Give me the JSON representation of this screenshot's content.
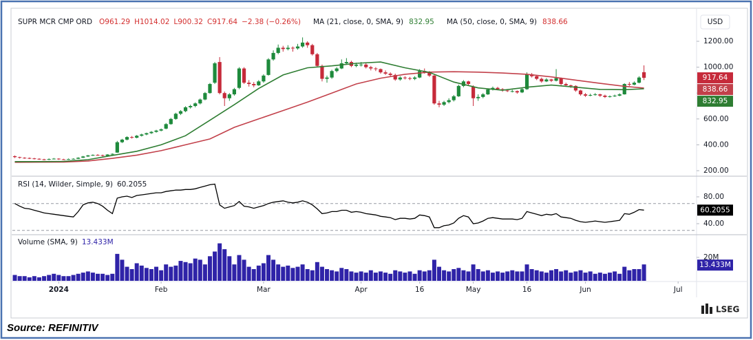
{
  "header": {
    "symbol": "SUPR MCR CMP ORD",
    "ohlc_labels": [
      "O961.29",
      "H1014.02",
      "L900.32",
      "C917.64"
    ],
    "change_label": "−2.38 (−0.26%)"
  },
  "currency": "USD",
  "source": "Source: REFINITIV",
  "logo": "LSEG",
  "chart_data": [
    {
      "type": "candlestick",
      "up_color": "#1e8a3c",
      "down_color": "#c62a3a",
      "xlim": [
        -0.5,
        139.5
      ],
      "xticks": [
        {
          "value": 9,
          "label": "2024"
        },
        {
          "value": 30,
          "label": "Feb"
        },
        {
          "value": 51,
          "label": "Mar"
        },
        {
          "value": 71,
          "label": "Apr"
        },
        {
          "value": 83,
          "label": "16"
        },
        {
          "value": 94,
          "label": "May"
        },
        {
          "value": 105,
          "label": "16"
        },
        {
          "value": 117,
          "label": "Jun"
        },
        {
          "value": 136,
          "label": "Jul"
        }
      ],
      "ylim": [
        162.8,
        1412.8
      ],
      "yticks": [
        {
          "value": 200,
          "label": "200.00"
        },
        {
          "value": 400,
          "label": "400.00"
        },
        {
          "value": 600,
          "label": "600.00"
        },
        {
          "value": 800,
          "label": "800.00"
        },
        {
          "value": 1000,
          "label": "1000.00"
        },
        {
          "value": 1200,
          "label": "1200.00"
        }
      ],
      "close_label": "917.64",
      "candles": [
        [
          312,
          318,
          298,
          305
        ],
        [
          305,
          308,
          294,
          300
        ],
        [
          300,
          304,
          292,
          298
        ],
        [
          298,
          302,
          290,
          295
        ],
        [
          295,
          299,
          287,
          292
        ],
        [
          292,
          296,
          284,
          288
        ],
        [
          288,
          292,
          280,
          285
        ],
        [
          285,
          295,
          282,
          290
        ],
        [
          290,
          298,
          287,
          293
        ],
        [
          293,
          296,
          284,
          288
        ],
        [
          288,
          292,
          282,
          286
        ],
        [
          286,
          294,
          284,
          290
        ],
        [
          290,
          296,
          287,
          292
        ],
        [
          292,
          304,
          290,
          300
        ],
        [
          300,
          314,
          298,
          310
        ],
        [
          310,
          322,
          306,
          318
        ],
        [
          318,
          326,
          314,
          322
        ],
        [
          322,
          328,
          316,
          320
        ],
        [
          320,
          324,
          310,
          315
        ],
        [
          315,
          328,
          312,
          325
        ],
        [
          325,
          334,
          320,
          330
        ],
        [
          340,
          430,
          338,
          420
        ],
        [
          420,
          446,
          414,
          440
        ],
        [
          440,
          466,
          434,
          460
        ],
        [
          460,
          468,
          448,
          455
        ],
        [
          455,
          476,
          450,
          470
        ],
        [
          470,
          486,
          464,
          480
        ],
        [
          480,
          494,
          474,
          490
        ],
        [
          490,
          506,
          484,
          500
        ],
        [
          500,
          516,
          494,
          510
        ],
        [
          510,
          526,
          504,
          520
        ],
        [
          525,
          568,
          520,
          560
        ],
        [
          560,
          608,
          555,
          600
        ],
        [
          600,
          648,
          594,
          640
        ],
        [
          640,
          668,
          630,
          660
        ],
        [
          660,
          698,
          652,
          690
        ],
        [
          690,
          710,
          680,
          700
        ],
        [
          700,
          728,
          690,
          720
        ],
        [
          720,
          758,
          712,
          750
        ],
        [
          750,
          808,
          744,
          800
        ],
        [
          800,
          878,
          795,
          870
        ],
        [
          880,
          1040,
          870,
          1030
        ],
        [
          1040,
          1078,
          790,
          800
        ],
        [
          800,
          812,
          700,
          760
        ],
        [
          760,
          800,
          740,
          790
        ],
        [
          790,
          840,
          780,
          830
        ],
        [
          840,
          1000,
          830,
          990
        ],
        [
          990,
          1000,
          870,
          880
        ],
        [
          880,
          900,
          850,
          870
        ],
        [
          870,
          885,
          845,
          860
        ],
        [
          860,
          900,
          855,
          890
        ],
        [
          890,
          945,
          880,
          935
        ],
        [
          940,
          1070,
          935,
          1060
        ],
        [
          1060,
          1130,
          1050,
          1110
        ],
        [
          1110,
          1175,
          1100,
          1150
        ],
        [
          1150,
          1165,
          1120,
          1140
        ],
        [
          1140,
          1170,
          1130,
          1150
        ],
        [
          1150,
          1160,
          1120,
          1145
        ],
        [
          1145,
          1180,
          1135,
          1160
        ],
        [
          1160,
          1230,
          1150,
          1190
        ],
        [
          1190,
          1200,
          1150,
          1170
        ],
        [
          1170,
          1180,
          1090,
          1100
        ],
        [
          1100,
          1110,
          1000,
          1010
        ],
        [
          1010,
          1020,
          890,
          910
        ],
        [
          910,
          935,
          880,
          920
        ],
        [
          920,
          980,
          910,
          970
        ],
        [
          970,
          1000,
          960,
          990
        ],
        [
          990,
          1060,
          985,
          1030
        ],
        [
          1030,
          1070,
          1020,
          1040
        ],
        [
          1040,
          1050,
          1000,
          1010
        ],
        [
          1010,
          1035,
          1000,
          1020
        ],
        [
          1020,
          1040,
          1005,
          1020
        ],
        [
          1020,
          1030,
          990,
          1000
        ],
        [
          1000,
          1010,
          975,
          990
        ],
        [
          990,
          1000,
          970,
          985
        ],
        [
          985,
          990,
          950,
          960
        ],
        [
          960,
          975,
          940,
          950
        ],
        [
          950,
          960,
          930,
          940
        ],
        [
          940,
          950,
          895,
          905
        ],
        [
          905,
          930,
          895,
          920
        ],
        [
          920,
          930,
          905,
          915
        ],
        [
          915,
          925,
          900,
          910
        ],
        [
          910,
          930,
          900,
          920
        ],
        [
          920,
          985,
          915,
          970
        ],
        [
          970,
          990,
          950,
          960
        ],
        [
          960,
          970,
          925,
          935
        ],
        [
          935,
          940,
          710,
          720
        ],
        [
          720,
          740,
          690,
          710
        ],
        [
          710,
          740,
          700,
          730
        ],
        [
          730,
          760,
          720,
          745
        ],
        [
          745,
          785,
          735,
          775
        ],
        [
          775,
          865,
          770,
          855
        ],
        [
          855,
          900,
          845,
          890
        ],
        [
          890,
          895,
          860,
          870
        ],
        [
          850,
          860,
          700,
          760
        ],
        [
          760,
          790,
          740,
          770
        ],
        [
          770,
          800,
          760,
          790
        ],
        [
          790,
          835,
          785,
          828
        ],
        [
          828,
          850,
          820,
          840
        ],
        [
          840,
          848,
          822,
          830
        ],
        [
          830,
          838,
          810,
          820
        ],
        [
          820,
          830,
          808,
          815
        ],
        [
          815,
          825,
          805,
          815
        ],
        [
          815,
          820,
          795,
          805
        ],
        [
          805,
          840,
          800,
          830
        ],
        [
          830,
          960,
          825,
          945
        ],
        [
          945,
          955,
          920,
          930
        ],
        [
          930,
          940,
          900,
          910
        ],
        [
          910,
          920,
          880,
          890
        ],
        [
          890,
          915,
          885,
          905
        ],
        [
          905,
          910,
          885,
          895
        ],
        [
          895,
          985,
          890,
          915
        ],
        [
          915,
          920,
          860,
          870
        ],
        [
          870,
          880,
          850,
          860
        ],
        [
          860,
          865,
          840,
          855
        ],
        [
          855,
          860,
          810,
          820
        ],
        [
          820,
          825,
          780,
          790
        ],
        [
          790,
          800,
          770,
          780
        ],
        [
          780,
          795,
          775,
          785
        ],
        [
          785,
          800,
          780,
          790
        ],
        [
          790,
          795,
          770,
          780
        ],
        [
          780,
          788,
          762,
          770
        ],
        [
          770,
          782,
          765,
          775
        ],
        [
          775,
          788,
          770,
          780
        ],
        [
          780,
          798,
          775,
          790
        ],
        [
          790,
          875,
          788,
          870
        ],
        [
          870,
          885,
          855,
          865
        ],
        [
          865,
          890,
          860,
          880
        ],
        [
          880,
          930,
          875,
          920.02
        ],
        [
          961.29,
          1014.02,
          900.32,
          917.64
        ]
      ],
      "series": [
        {
          "name": "MA (21, close, 0, SMA, 9)",
          "color": "#2e7d32",
          "value_label": "832.95",
          "x": [
            0,
            5,
            10,
            15,
            20,
            25,
            30,
            35,
            40,
            45,
            50,
            55,
            60,
            65,
            70,
            75,
            80,
            85,
            90,
            95,
            100,
            105,
            110,
            115,
            120,
            125,
            129
          ],
          "values": [
            270,
            270,
            272,
            285,
            318,
            350,
            400,
            470,
            590,
            710,
            835,
            940,
            995,
            1010,
            1030,
            1040,
            995,
            960,
            885,
            840,
            822,
            845,
            862,
            845,
            828,
            826,
            832.95
          ]
        },
        {
          "name": "MA (50, close, 0, SMA, 9)",
          "color": "#c2404a",
          "value_label": "838.66",
          "x": [
            0,
            5,
            10,
            15,
            20,
            25,
            30,
            35,
            40,
            45,
            50,
            55,
            60,
            65,
            70,
            75,
            80,
            85,
            90,
            95,
            100,
            105,
            110,
            115,
            120,
            125,
            129
          ],
          "values": [
            265,
            266,
            267,
            275,
            295,
            320,
            355,
            400,
            445,
            535,
            600,
            665,
            730,
            800,
            870,
            915,
            945,
            962,
            965,
            962,
            955,
            945,
            925,
            900,
            875,
            852,
            838.66
          ]
        }
      ]
    },
    {
      "type": "line",
      "title": "RSI (14, Wilder, Simple, 9)",
      "value_label": "60.2055",
      "color": "#000000",
      "ylim": [
        24.6,
        108.7
      ],
      "yticks": [
        {
          "value": 40,
          "label": "40.00"
        },
        {
          "value": 80,
          "label": "80.00"
        }
      ],
      "bands": [
        30,
        70
      ],
      "values": [
        70,
        66,
        63,
        62,
        60,
        58,
        56,
        55,
        54,
        53,
        52,
        51,
        50,
        58,
        68,
        71,
        72,
        70,
        66,
        60,
        55,
        78,
        80,
        81,
        79,
        82,
        83,
        84,
        85,
        86,
        86,
        88,
        89,
        90,
        90,
        91,
        91,
        92,
        94,
        96,
        98,
        99,
        68,
        63,
        65,
        67,
        73,
        66,
        65,
        63,
        65,
        67,
        70,
        72,
        73,
        74,
        72,
        71,
        72,
        74,
        72,
        68,
        62,
        55,
        56,
        58,
        58,
        60,
        60,
        57,
        58,
        57,
        55,
        54,
        53,
        51,
        50,
        49,
        46,
        48,
        48,
        47,
        48,
        53,
        52,
        50,
        34,
        34,
        37,
        38,
        41,
        48,
        52,
        50,
        40,
        41,
        44,
        48,
        49,
        48,
        47,
        47,
        47,
        46,
        48,
        58,
        56,
        54,
        52,
        54,
        53,
        55,
        50,
        49,
        48,
        45,
        43,
        42,
        43,
        44,
        43,
        42,
        43,
        44,
        45,
        55,
        54,
        57,
        61,
        60.2055
      ]
    },
    {
      "type": "bar",
      "title": "Volume (SMA, 9)",
      "sma": 13.433,
      "sma_label": "13.433M",
      "color": "#2f23a8",
      "ylim": [
        0,
        38.8
      ],
      "yticks": [
        {
          "value": 20,
          "label": "20M"
        }
      ],
      "values": [
        5,
        4,
        4,
        3,
        4,
        3,
        4,
        5,
        6,
        5,
        4,
        4,
        5,
        6,
        7,
        8,
        7,
        6,
        6,
        5,
        6,
        23,
        18,
        12,
        10,
        15,
        13,
        11,
        10,
        12,
        9,
        14,
        12,
        13,
        17,
        16,
        15,
        19,
        18,
        14,
        21,
        25,
        32,
        27,
        21,
        14,
        22,
        18,
        12,
        10,
        13,
        15,
        22,
        18,
        14,
        12,
        13,
        11,
        12,
        14,
        10,
        9,
        16,
        12,
        10,
        9,
        8,
        11,
        10,
        8,
        7,
        8,
        7,
        9,
        7,
        8,
        7,
        6,
        9,
        8,
        7,
        8,
        6,
        9,
        8,
        9,
        18,
        12,
        9,
        8,
        10,
        11,
        9,
        8,
        14,
        10,
        8,
        9,
        7,
        8,
        7,
        8,
        9,
        8,
        8,
        14,
        10,
        9,
        8,
        7,
        9,
        10,
        8,
        9,
        7,
        8,
        9,
        7,
        8,
        6,
        7,
        6,
        7,
        8,
        6,
        12,
        9,
        10,
        10,
        14
      ]
    }
  ]
}
